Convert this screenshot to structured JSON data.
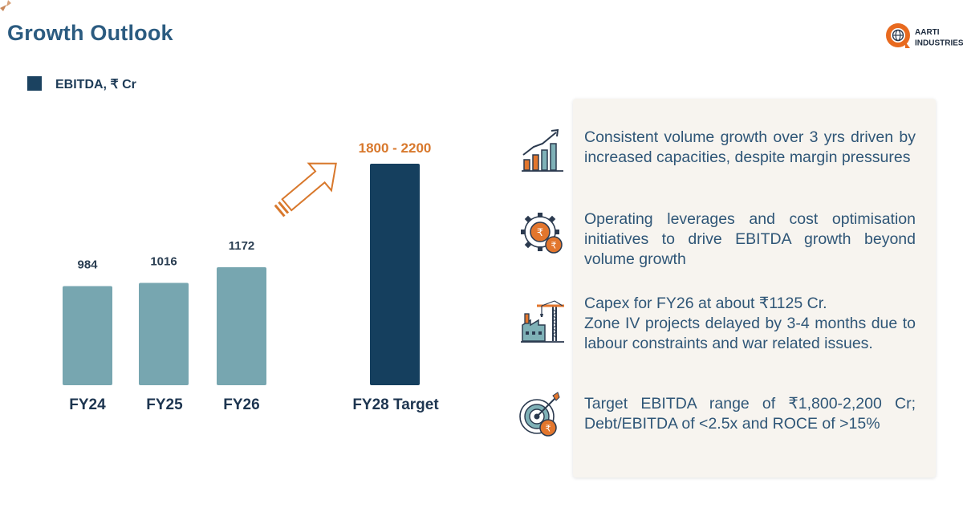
{
  "page": {
    "title": "Growth Outlook",
    "logo": {
      "line1": "AARTI",
      "line2": "INDUSTRIES",
      "mark": "®"
    }
  },
  "legend": {
    "label": "EBITDA, ₹ Cr",
    "color": "#1b4260"
  },
  "chart_data": {
    "type": "bar",
    "categories": [
      "FY24",
      "FY25",
      "FY26",
      "FY28 Target"
    ],
    "values": [
      984,
      1016,
      1172,
      2200
    ],
    "data_labels": [
      "984",
      "1016",
      "1172",
      "1800 - 2200"
    ],
    "target_range": [
      1800,
      2200
    ],
    "colors": [
      "#77a6b0",
      "#77a6b0",
      "#77a6b0",
      "#153f5e"
    ],
    "label_colors": [
      "#2a3e52",
      "#2a3e52",
      "#2a3e52",
      "#d8782c"
    ],
    "ylim": [
      0,
      2200
    ],
    "grid": false,
    "legend_position": "top-left"
  },
  "highlights": [
    {
      "icon": "growth-chart-icon",
      "text": "Consistent volume growth over 3 yrs driven by increased capacities, despite margin pressures"
    },
    {
      "icon": "gear-rupee-icon",
      "text": "Operating leverages and cost optimisation initiatives to drive EBITDA growth beyond volume growth"
    },
    {
      "icon": "factory-crane-icon",
      "lines": [
        "Capex for FY26 at about ₹1125 Cr.",
        "Zone IV projects delayed by 3-4 months due to labour constraints and war related issues."
      ]
    },
    {
      "icon": "target-rupee-icon",
      "text": "Target EBITDA range of ₹1,800-2,200 Cr; Debt/EBITDA of <2.5x and ROCE of >15%"
    }
  ]
}
